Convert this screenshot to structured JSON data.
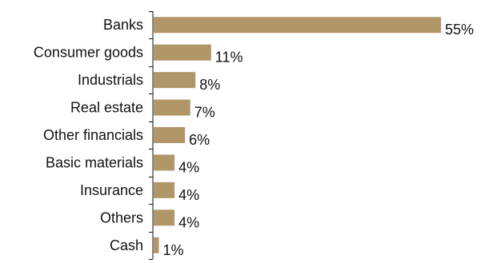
{
  "chart_data": {
    "type": "bar",
    "orientation": "horizontal",
    "categories": [
      "Banks",
      "Consumer goods",
      "Industrials",
      "Real estate",
      "Other financials",
      "Basic materials",
      "Insurance",
      "Others",
      "Cash"
    ],
    "values": [
      55,
      11,
      8,
      7,
      6,
      4,
      4,
      4,
      1
    ],
    "value_labels": [
      "55%",
      "11%",
      "8%",
      "7%",
      "6%",
      "4%",
      "4%",
      "4%",
      "1%"
    ],
    "xlim": [
      0,
      55
    ],
    "grid": false,
    "legend": "none",
    "bar_color": "#b1966a"
  }
}
